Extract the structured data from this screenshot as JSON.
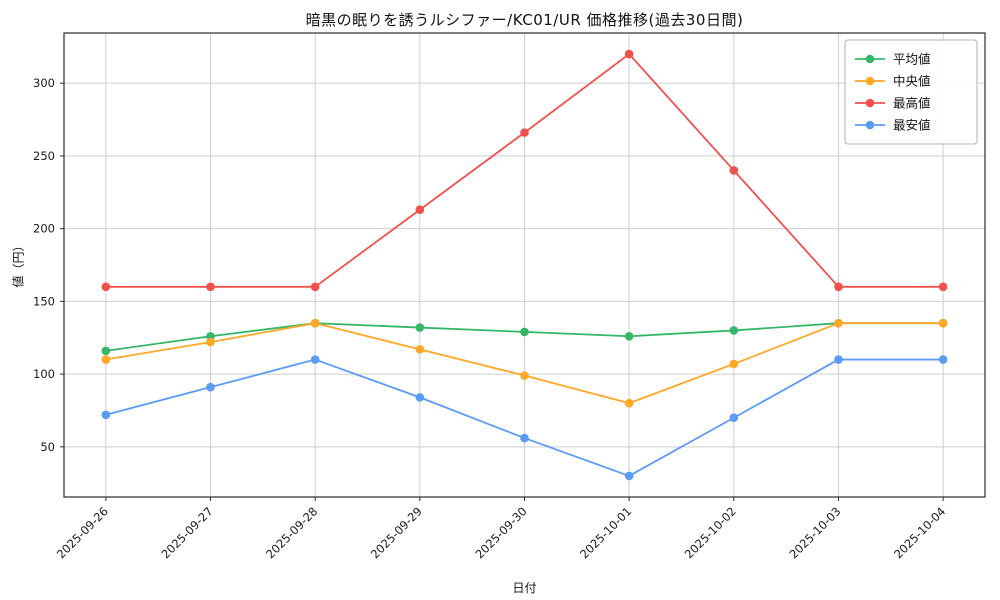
{
  "chart": {
    "title": "暗黒の眠りを誘うルシファー/KC01/UR 価格推移(過去30日間)",
    "xlabel": "日付",
    "ylabel": "値（円）"
  },
  "chart_data": {
    "type": "line",
    "categories": [
      "2025-09-26",
      "2025-09-27",
      "2025-09-28",
      "2025-09-29",
      "2025-09-30",
      "2025-10-01",
      "2025-10-02",
      "2025-10-03",
      "2025-10-04"
    ],
    "series": [
      {
        "name": "平均値",
        "color": "#34b868",
        "values": [
          116,
          126,
          135,
          132,
          129,
          126,
          130,
          135,
          135
        ]
      },
      {
        "name": "中央値",
        "color": "#ffa726",
        "values": [
          110,
          122,
          135,
          117,
          99,
          80,
          107,
          135,
          135
        ]
      },
      {
        "name": "最高値",
        "color": "#f1504d",
        "values": [
          160,
          160,
          160,
          213,
          266,
          320,
          240,
          160,
          160
        ]
      },
      {
        "name": "最安値",
        "color": "#5b9bf8",
        "values": [
          72,
          91,
          110,
          84,
          56,
          30,
          70,
          110,
          110
        ]
      }
    ],
    "yticks": [
      50,
      100,
      150,
      200,
      250,
      300
    ],
    "ylim": [
      15.5,
      334.5
    ],
    "grid": true,
    "legend_position": "upper right",
    "marker": "circle",
    "colors": {
      "grid": "#cfcfcf",
      "spine": "#2b2b2b",
      "tick_text": "#1a1a1a",
      "legend_border": "#b3b3b3",
      "legend_bg": "#ffffff"
    }
  }
}
